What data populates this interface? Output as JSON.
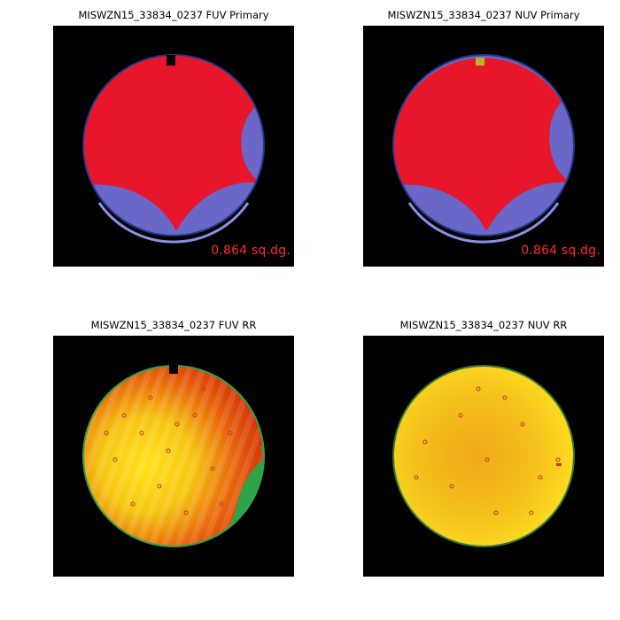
{
  "panels": [
    {
      "title": "MISWZN15_33834_0237 FUV Primary",
      "area_label": "0.864 sq.dg.",
      "type": "primary",
      "band": "FUV"
    },
    {
      "title": "MISWZN15_33834_0237 NUV Primary",
      "area_label": "0.864 sq.dg.",
      "type": "primary",
      "band": "NUV"
    },
    {
      "title": "MISWZN15_33834_0237 FUV RR",
      "area_label": "",
      "type": "rr",
      "band": "FUV"
    },
    {
      "title": "MISWZN15_33834_0237 NUV RR",
      "area_label": "",
      "type": "rr",
      "band": "NUV"
    }
  ],
  "colors": {
    "background": "#000000",
    "primary_fill": "#e8162a",
    "overlap_fill": "#6a67c9",
    "outer_rim": "#1e3a86",
    "inner_rim": "#8e90e6",
    "notch_marker_nuv": "#b8b030",
    "rr_edge": "#2fa34a",
    "area_text": "#ff2b2b"
  }
}
